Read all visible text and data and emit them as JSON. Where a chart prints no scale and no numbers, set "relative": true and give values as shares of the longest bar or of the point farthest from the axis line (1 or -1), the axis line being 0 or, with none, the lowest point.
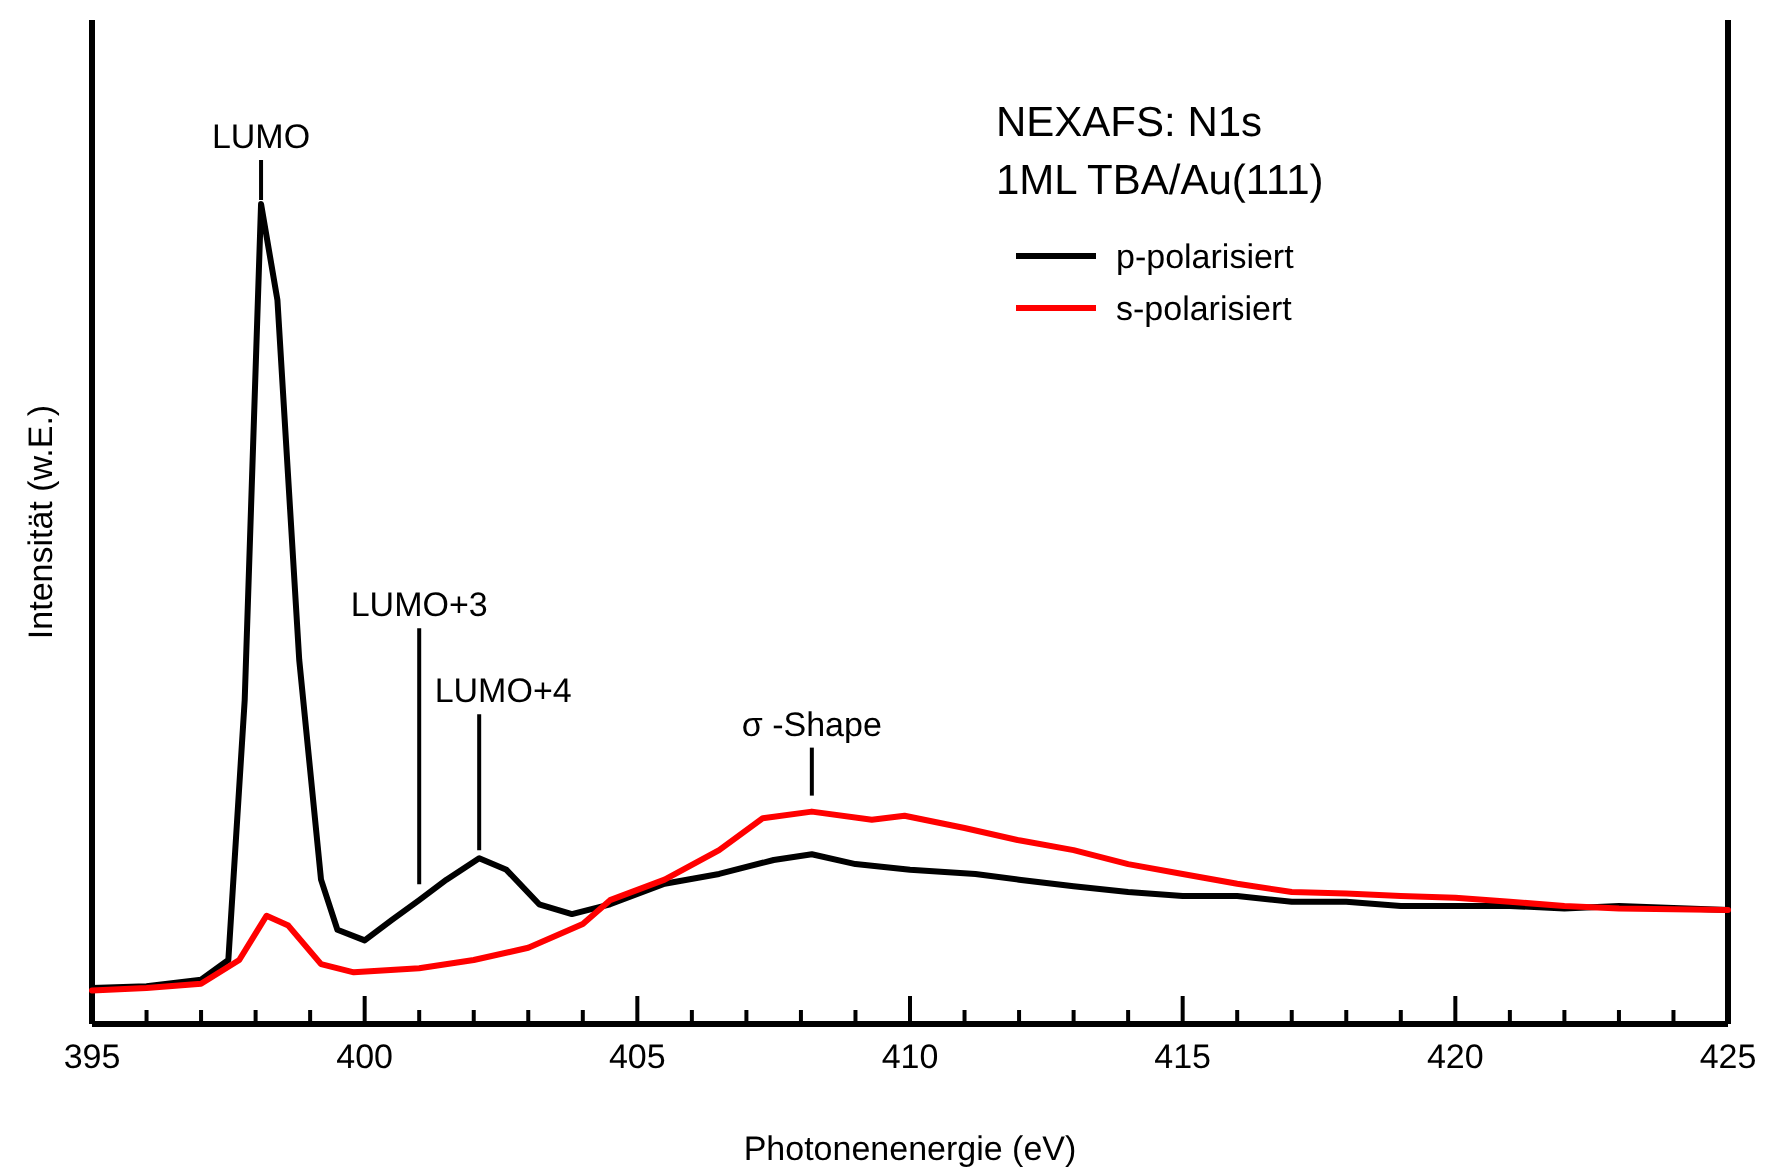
{
  "chart_data": {
    "type": "line",
    "title": "NEXAFS: N1s",
    "subtitle": "1ML TBA/Au(111)",
    "xlabel": "Photonenenergie (eV)",
    "ylabel": "Intensität (w.E.)",
    "relative": true,
    "xlim": [
      395,
      425
    ],
    "xticks": [
      395,
      {
        "value": 396,
        "label": null
      },
      {
        "value": 397,
        "label": null
      },
      {
        "value": 398,
        "label": null
      },
      {
        "value": 399,
        "label": null
      },
      400,
      {
        "value": 401,
        "label": null
      },
      {
        "value": 402,
        "label": null
      },
      {
        "value": 403,
        "label": null
      },
      {
        "value": 404,
        "label": null
      },
      405,
      {
        "value": 406,
        "label": null
      },
      {
        "value": 407,
        "label": null
      },
      {
        "value": 408,
        "label": null
      },
      {
        "value": 409,
        "label": null
      },
      410,
      {
        "value": 411,
        "label": null
      },
      {
        "value": 412,
        "label": null
      },
      {
        "value": 413,
        "label": null
      },
      {
        "value": 414,
        "label": null
      },
      415,
      {
        "value": 416,
        "label": null
      },
      {
        "value": 417,
        "label": null
      },
      {
        "value": 418,
        "label": null
      },
      {
        "value": 419,
        "label": null
      },
      420,
      {
        "value": 421,
        "label": null
      },
      {
        "value": 422,
        "label": null
      },
      {
        "value": 423,
        "label": null
      },
      {
        "value": 424,
        "label": null
      },
      425
    ],
    "tick_labels": "x",
    "grid": false,
    "legend": "top right",
    "marker": "none",
    "line_style": "solid",
    "series": [
      {
        "name": "p-polarisiert",
        "color": "#000000",
        "x": [
          395,
          396,
          397,
          397.5,
          397.8,
          398.1,
          398.4,
          398.8,
          399.2,
          399.5,
          400,
          400.5,
          401,
          401.5,
          402.1,
          402.6,
          403.2,
          403.8,
          404.5,
          405.5,
          406.5,
          407.5,
          408.2,
          409,
          410,
          411.2,
          412,
          413,
          414,
          415,
          416,
          417,
          418,
          419,
          420,
          421,
          422,
          423,
          425
        ],
        "values": [
          0.044,
          0.046,
          0.054,
          0.078,
          0.395,
          1,
          0.883,
          0.444,
          0.176,
          0.115,
          0.102,
          0.127,
          0.151,
          0.176,
          0.202,
          0.188,
          0.146,
          0.134,
          0.146,
          0.171,
          0.183,
          0.2,
          0.207,
          0.195,
          0.188,
          0.183,
          0.176,
          0.168,
          0.161,
          0.156,
          0.156,
          0.149,
          0.149,
          0.144,
          0.144,
          0.144,
          0.141,
          0.144,
          0.139
        ]
      },
      {
        "name": "s-polarisiert",
        "color": "#ff0000",
        "x": [
          395,
          396,
          397,
          397.7,
          398.2,
          398.6,
          399.2,
          399.8,
          401,
          402,
          403,
          404,
          404.5,
          405.5,
          406.5,
          407.3,
          408.2,
          409.3,
          409.9,
          411,
          412,
          413,
          414,
          415,
          416,
          417,
          418,
          419,
          420,
          421,
          422,
          423,
          425
        ],
        "values": [
          0.041,
          0.044,
          0.049,
          0.078,
          0.132,
          0.12,
          0.073,
          0.063,
          0.068,
          0.078,
          0.093,
          0.122,
          0.151,
          0.176,
          0.212,
          0.251,
          0.259,
          0.249,
          0.254,
          0.239,
          0.224,
          0.212,
          0.195,
          0.183,
          0.171,
          0.161,
          0.159,
          0.156,
          0.154,
          0.149,
          0.144,
          0.141,
          0.139
        ]
      }
    ],
    "annotations": [
      {
        "text": "LUMO",
        "x": 398.1,
        "y": 1
      },
      {
        "text": "LUMO+3",
        "x": 401,
        "y": 0.151
      },
      {
        "text": "LUMO+4",
        "x": 402.1,
        "y": 0.202
      },
      {
        "text": "σ -Shape",
        "x": 408.2,
        "y": 0.259
      }
    ]
  }
}
